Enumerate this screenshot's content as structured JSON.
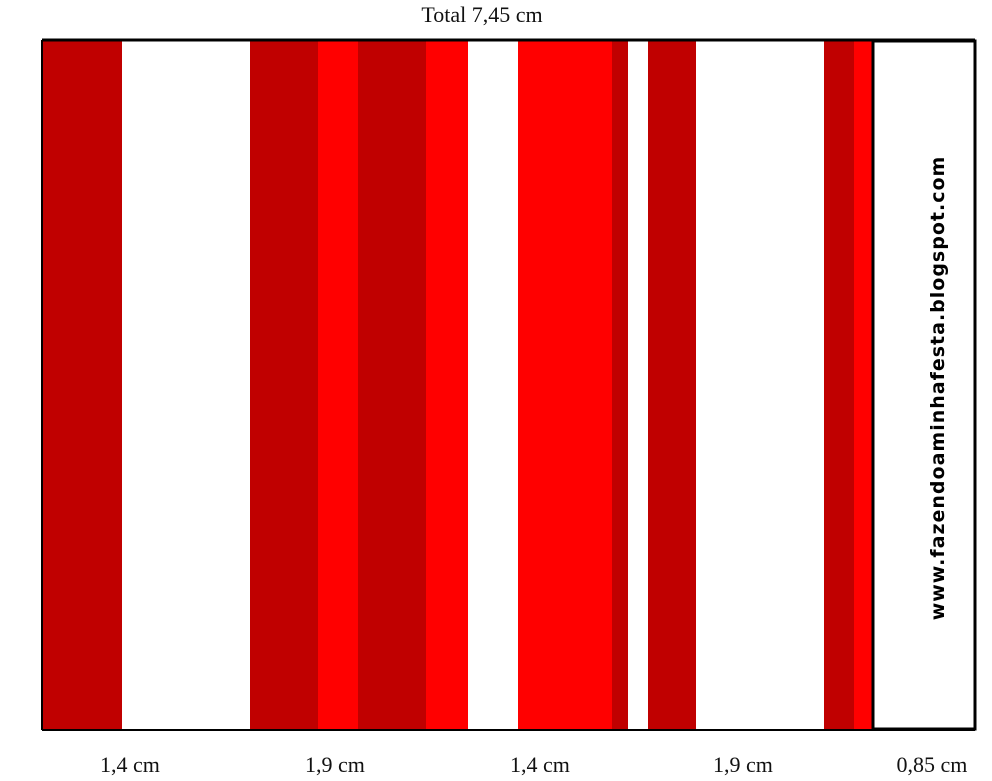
{
  "header": {
    "title": "Total 7,45 cm"
  },
  "measurements": [
    "1,4 cm",
    "1,9 cm",
    "1,4 cm",
    "1,9 cm",
    "0,85 cm"
  ],
  "side_text": "www.fazendoaminhafesta.blogspot.com"
}
